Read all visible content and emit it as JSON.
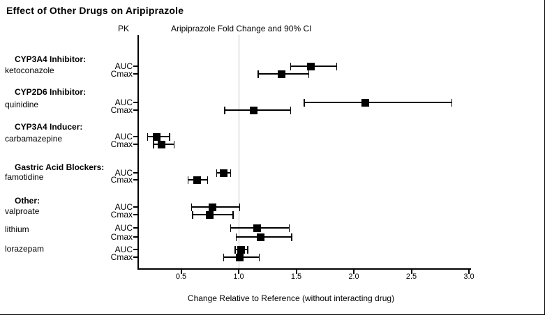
{
  "page": {
    "title": "Effect of Other Drugs on Aripiprazole"
  },
  "chart_data": {
    "type": "forest",
    "title": "Effect of Other Drugs on Aripiprazole",
    "pk_column_header": "PK",
    "plot_header": "Aripiprazole Fold Change and 90% CI",
    "xlabel": "Change Relative to Reference (without interacting drug)",
    "x_tick_labels": [
      "0.5",
      "1.0",
      "1.5",
      "2.0",
      "2.5",
      "3.0"
    ],
    "x_tick_values": [
      0.5,
      1.0,
      1.5,
      2.0,
      2.5,
      3.0
    ],
    "xlim": [
      0.5,
      3.0
    ],
    "reference_value": 1.0,
    "reference_line_color": "#c2c2c2",
    "marker_color": "#000000",
    "grid": false,
    "groups": [
      {
        "header": "CYP3A4 Inhibitor:",
        "drugs": [
          {
            "name": "ketoconazole",
            "rows": [
              {
                "pk": "AUC",
                "value": 1.63,
                "ci90": [
                  1.45,
                  1.85
                ]
              },
              {
                "pk": "Cmax",
                "value": 1.37,
                "ci90": [
                  1.17,
                  1.61
                ]
              }
            ]
          }
        ]
      },
      {
        "header": "CYP2D6 Inhibitor:",
        "drugs": [
          {
            "name": "quinidine",
            "rows": [
              {
                "pk": "AUC",
                "value": 2.1,
                "ci90": [
                  1.57,
                  2.85
                ]
              },
              {
                "pk": "Cmax",
                "value": 1.13,
                "ci90": [
                  0.88,
                  1.45
                ]
              }
            ]
          }
        ]
      },
      {
        "header": "CYP3A4 Inducer:",
        "drugs": [
          {
            "name": "carbamazepine",
            "rows": [
              {
                "pk": "AUC",
                "value": 0.29,
                "ci90": [
                  0.21,
                  0.4
                ]
              },
              {
                "pk": "Cmax",
                "value": 0.33,
                "ci90": [
                  0.26,
                  0.44
                ]
              }
            ]
          }
        ]
      },
      {
        "header": "Gastric Acid Blockers:",
        "drugs": [
          {
            "name": "famotidine",
            "rows": [
              {
                "pk": "AUC",
                "value": 0.87,
                "ci90": [
                  0.81,
                  0.93
                ]
              },
              {
                "pk": "Cmax",
                "value": 0.64,
                "ci90": [
                  0.56,
                  0.73
                ]
              }
            ]
          }
        ]
      },
      {
        "header": "Other:",
        "drugs": [
          {
            "name": "valproate",
            "rows": [
              {
                "pk": "AUC",
                "value": 0.77,
                "ci90": [
                  0.59,
                  1.01
                ]
              },
              {
                "pk": "Cmax",
                "value": 0.75,
                "ci90": [
                  0.6,
                  0.95
                ]
              }
            ]
          },
          {
            "name": "lithium",
            "rows": [
              {
                "pk": "AUC",
                "value": 1.16,
                "ci90": [
                  0.93,
                  1.44
                ]
              },
              {
                "pk": "Cmax",
                "value": 1.19,
                "ci90": [
                  0.98,
                  1.46
                ]
              }
            ]
          },
          {
            "name": "lorazepam",
            "rows": [
              {
                "pk": "AUC",
                "value": 1.02,
                "ci90": [
                  0.97,
                  1.08
                ]
              },
              {
                "pk": "Cmax",
                "value": 1.01,
                "ci90": [
                  0.87,
                  1.18
                ]
              }
            ]
          }
        ]
      }
    ]
  }
}
